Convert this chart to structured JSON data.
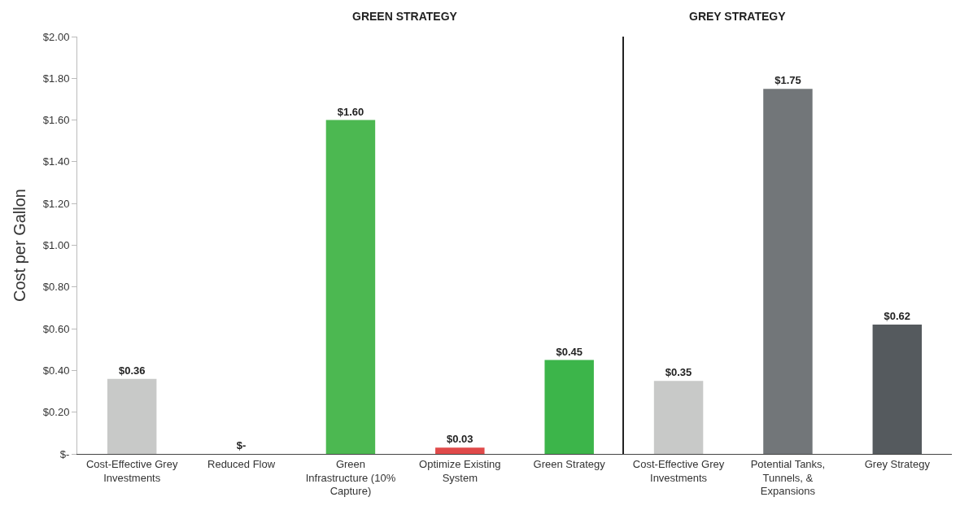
{
  "chart_data": [
    {
      "type": "bar",
      "title": "GREEN STRATEGY",
      "ylabel": "Cost per Gallon",
      "categories": [
        "Cost-Effective Grey Investments",
        "Reduced Flow",
        "Green Infrastructure (10% Capture)",
        "Optimize Existing System",
        "Green Strategy"
      ],
      "values": [
        0.36,
        0,
        1.6,
        0.03,
        0.45
      ],
      "colors": [
        "#c8c9c8",
        "#c8c9c8",
        "#4cb851",
        "#e04a4a",
        "#3cb54a"
      ],
      "value_labels": [
        "$0.36",
        "$-",
        "$1.60",
        "$0.03",
        "$0.45"
      ],
      "ylim": [
        0,
        2
      ],
      "yticks": [
        {
          "value": 0,
          "label": "$-"
        },
        {
          "value": 0.2,
          "label": "$0.20"
        },
        {
          "value": 0.4,
          "label": "$0.40"
        },
        {
          "value": 0.6,
          "label": "$0.60"
        },
        {
          "value": 0.8,
          "label": "$0.80"
        },
        {
          "value": 1.0,
          "label": "$1.00"
        },
        {
          "value": 1.2,
          "label": "$1.20"
        },
        {
          "value": 1.4,
          "label": "$1.40"
        },
        {
          "value": 1.6,
          "label": "$1.60"
        },
        {
          "value": 1.8,
          "label": "$1.80"
        },
        {
          "value": 2.0,
          "label": "$2.00"
        }
      ]
    },
    {
      "type": "bar",
      "title": "GREY STRATEGY",
      "categories": [
        "Cost-Effective Grey Investments",
        "Potential Tanks, Tunnels, & Expansions",
        "Grey Strategy"
      ],
      "values": [
        0.35,
        1.75,
        0.62
      ],
      "colors": [
        "#c8c9c8",
        "#727679",
        "#555a5e"
      ],
      "value_labels": [
        "$0.35",
        "$1.75",
        "$0.62"
      ],
      "ylim": [
        0,
        2
      ],
      "tick_labels": "x"
    }
  ]
}
